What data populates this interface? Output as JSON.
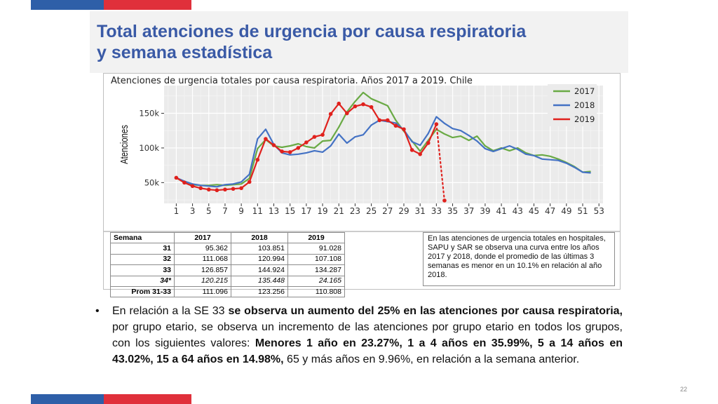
{
  "colors": {
    "blue_bar": "#2e5fa8",
    "red_bar": "#e0303b",
    "title": "#3a5aa6",
    "series_2017": "#6aaa45",
    "series_2018": "#4472c4",
    "series_2019": "#e0211d",
    "plot_bg": "#ebebeb"
  },
  "slide": {
    "title_line1": "Total atenciones de urgencia por causa respiratoria",
    "title_line2": "y semana estadística",
    "page_number": "22"
  },
  "chart_data": {
    "type": "line",
    "title": "Atenciones de urgencia totales por causa respiratoria. Años 2017 a 2019. Chile",
    "xlabel": "",
    "ylabel": "Atenciones",
    "xlim": [
      -0.5,
      53.5
    ],
    "ylim": [
      20000,
      190000
    ],
    "yticks": [
      50000,
      100000,
      150000
    ],
    "ytick_labels": [
      "50k",
      "100k",
      "150k"
    ],
    "xticks": [
      1,
      3,
      5,
      7,
      9,
      11,
      13,
      15,
      17,
      19,
      21,
      23,
      25,
      27,
      29,
      31,
      33,
      35,
      37,
      39,
      41,
      43,
      45,
      47,
      49,
      51,
      53
    ],
    "grid": true,
    "legend_position": "top-right",
    "series": [
      {
        "name": "2017",
        "color": "#6aaa45",
        "x": [
          1,
          2,
          3,
          4,
          5,
          6,
          7,
          8,
          9,
          10,
          11,
          12,
          13,
          14,
          15,
          16,
          17,
          18,
          19,
          20,
          21,
          22,
          23,
          24,
          25,
          26,
          27,
          28,
          29,
          30,
          31,
          32,
          33,
          34,
          35,
          36,
          37,
          38,
          39,
          40,
          41,
          42,
          43,
          44,
          45,
          46,
          47,
          48,
          49,
          50,
          51,
          52
        ],
        "y": [
          57000,
          50000,
          47000,
          46000,
          46000,
          47000,
          46000,
          47000,
          48000,
          56000,
          99000,
          112000,
          103000,
          101000,
          103000,
          106000,
          102000,
          100000,
          110000,
          111000,
          130000,
          152000,
          167000,
          180000,
          171000,
          166000,
          161000,
          140000,
          124000,
          110000,
          95362,
          111068,
          126857,
          120215,
          115000,
          117000,
          111000,
          117000,
          103000,
          96000,
          100000,
          96000,
          100000,
          93000,
          89000,
          90000,
          88000,
          84000,
          79000,
          73000,
          65000,
          66000
        ]
      },
      {
        "name": "2018",
        "color": "#4472c4",
        "x": [
          1,
          2,
          3,
          4,
          5,
          6,
          7,
          8,
          9,
          10,
          11,
          12,
          13,
          14,
          15,
          16,
          17,
          18,
          19,
          20,
          21,
          22,
          23,
          24,
          25,
          26,
          27,
          28,
          29,
          30,
          31,
          32,
          33,
          34,
          35,
          36,
          37,
          38,
          39,
          40,
          41,
          42,
          43,
          44,
          45,
          46,
          47,
          48,
          49,
          50,
          51,
          52
        ],
        "y": [
          57000,
          52000,
          48000,
          46000,
          45000,
          44000,
          47000,
          48000,
          51000,
          62000,
          113000,
          127000,
          105000,
          93000,
          90000,
          91000,
          93000,
          96000,
          94000,
          103000,
          120000,
          107000,
          116000,
          119000,
          133000,
          140000,
          138000,
          136000,
          126000,
          109000,
          103851,
          120994,
          144924,
          135448,
          128000,
          125000,
          118000,
          110000,
          99000,
          95000,
          99000,
          103000,
          98000,
          91000,
          89000,
          84000,
          83000,
          82000,
          78000,
          72000,
          65000,
          64000
        ]
      },
      {
        "name": "2019",
        "color": "#e0211d",
        "x": [
          1,
          2,
          3,
          4,
          5,
          6,
          7,
          8,
          9,
          10,
          11,
          12,
          13,
          14,
          15,
          16,
          17,
          18,
          19,
          20,
          21,
          22,
          23,
          24,
          25,
          26,
          27,
          28,
          29,
          30,
          31,
          32,
          33
        ],
        "y": [
          57000,
          50000,
          45000,
          42000,
          40000,
          39000,
          40000,
          41000,
          42000,
          51000,
          83000,
          113000,
          104000,
          95000,
          94000,
          100000,
          108000,
          116000,
          119000,
          149000,
          164000,
          150000,
          160000,
          163000,
          159000,
          140000,
          140000,
          132000,
          127000,
          97000,
          91028,
          107108,
          134287
        ]
      },
      {
        "name": "2019 SE 34*",
        "color": "#e0211d",
        "dotted": true,
        "x": [
          33,
          34
        ],
        "y": [
          134287,
          24165
        ]
      }
    ]
  },
  "table": {
    "headers": [
      "Semana",
      "2017",
      "2018",
      "2019"
    ],
    "rows": [
      {
        "week": "31",
        "v2017": "95.362",
        "v2018": "103.851",
        "v2019": "91.028",
        "italic": false
      },
      {
        "week": "32",
        "v2017": "111.068",
        "v2018": "120.994",
        "v2019": "107.108",
        "italic": false
      },
      {
        "week": "33",
        "v2017": "126.857",
        "v2018": "144.924",
        "v2019": "134.287",
        "italic": false
      },
      {
        "week": "34*",
        "v2017": "120.215",
        "v2018": "135.448",
        "v2019": "24.165",
        "italic": true
      }
    ],
    "prom": {
      "label": "Prom 31-33",
      "v2017": "111.096",
      "v2018": "123.256",
      "v2019": "110.808"
    }
  },
  "note": {
    "text": "En las atenciones de urgencia totales en hospitales, SAPU y SAR se observa una curva entre los años 2017 y 2018, donde el promedio de las últimas 3 semanas es menor en un 10.1% en relación al año 2018."
  },
  "bullet": {
    "symbol": "•",
    "part1": "En relación a la SE 33 ",
    "part2_bold": "se observa un aumento del 25% en las atenciones por causa respiratoria,",
    "part3": " por grupo etario, se observa un incremento de las atenciones por grupo etario en todos los grupos, con los siguientes valores: ",
    "part4_bold": "Menores 1 año en 23.27%, 1 a 4 años en 35.99%, 5 a 14 años en 43.02%, 15 a 64 años en 14.98%,",
    "part5": " 65 y más años en 9.96%, en relación a la semana anterior."
  }
}
